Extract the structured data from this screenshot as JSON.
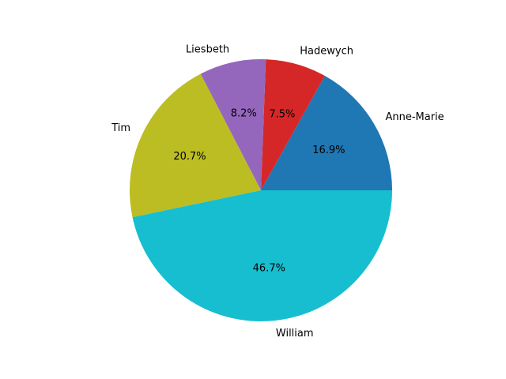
{
  "chart_data": {
    "type": "pie",
    "title": "",
    "slices": [
      {
        "label": "Anne-Marie",
        "percent_label": "16.9%",
        "value": 16.9,
        "color": "#1f77b4"
      },
      {
        "label": "Hadewych",
        "percent_label": "7.5%",
        "value": 7.5,
        "color": "#d62728"
      },
      {
        "label": "Liesbeth",
        "percent_label": "8.2%",
        "value": 8.2,
        "color": "#9467bd"
      },
      {
        "label": "Tim",
        "percent_label": "20.7%",
        "value": 20.7,
        "color": "#bcbd22"
      },
      {
        "label": "William",
        "percent_label": "46.7%",
        "value": 46.7,
        "color": "#17becf"
      }
    ],
    "start_angle_deg": 0,
    "direction": "counterclockwise",
    "legend": "none"
  }
}
